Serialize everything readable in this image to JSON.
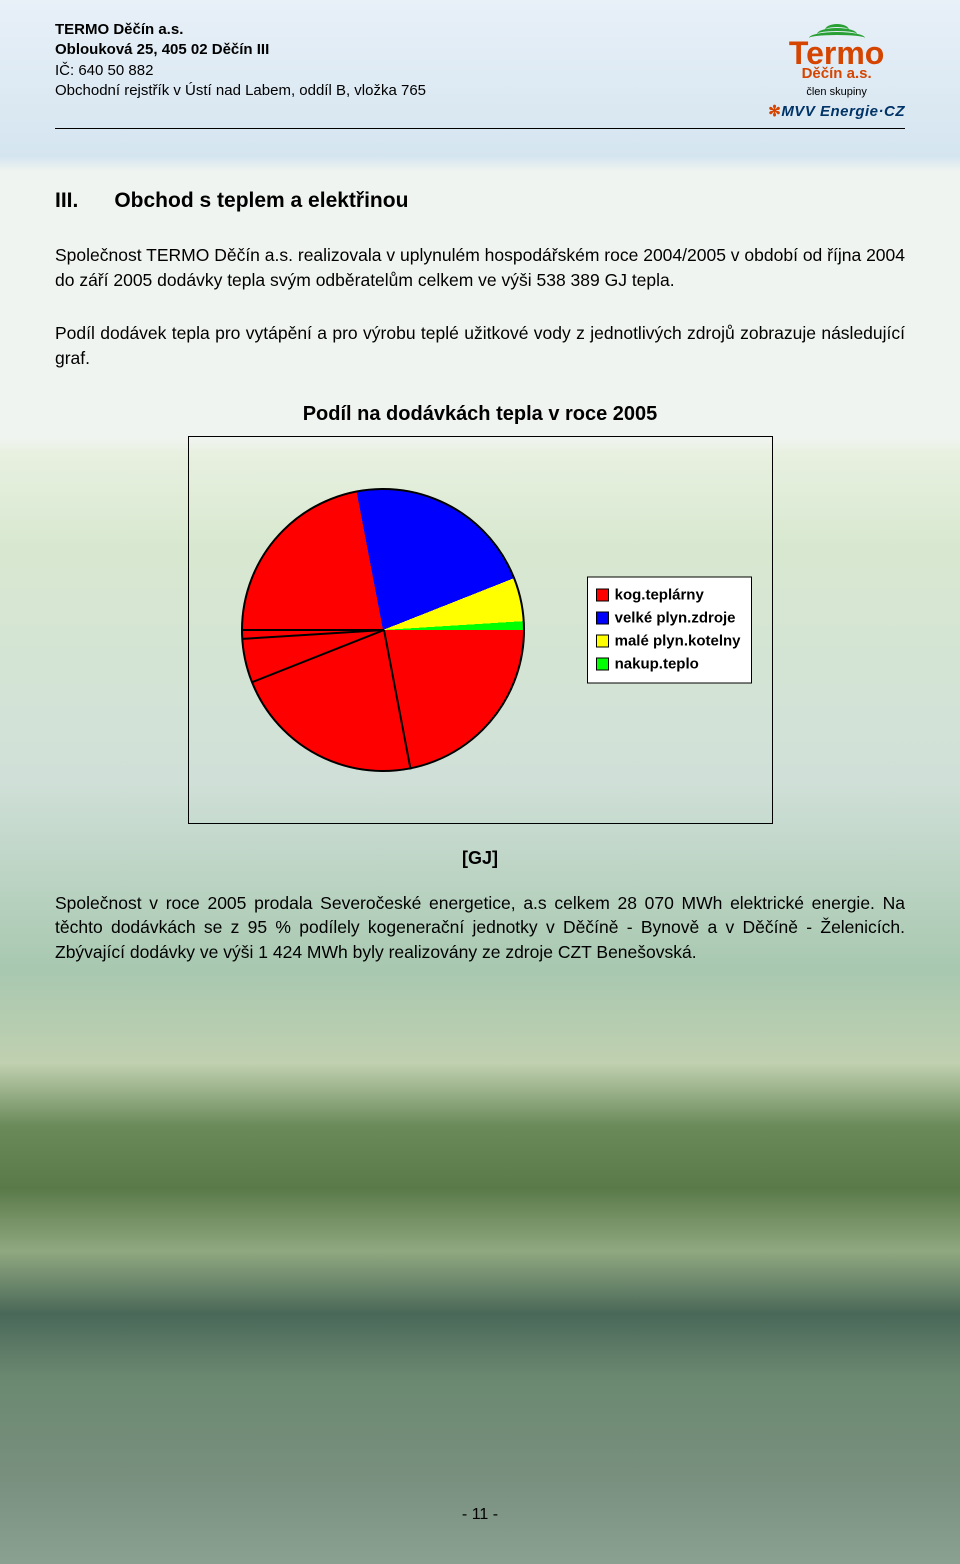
{
  "header": {
    "company": "TERMO Děčín a.s.",
    "address": "Oblouková 25, 405 02  Děčín III",
    "ico": "IČ: 640 50 882",
    "registry": "Obchodní rejstřík v Ústí nad Labem, oddíl B, vložka 765",
    "logo_name": "Termo",
    "logo_sub": "Děčín a.s.",
    "logo_member": "člen skupiny",
    "logo_mvv": "MVV Energie·CZ",
    "logo_color": "#d54500",
    "logo_arc_color": "#28a033",
    "mvv_color": "#003366"
  },
  "section": {
    "num": "III.",
    "title": "Obchod s teplem a elektřinou"
  },
  "para1": "Společnost TERMO Děčín a.s. realizovala v uplynulém hospodářském roce 2004/2005 v období od října 2004 do září 2005 dodávky tepla svým odběratelům celkem ve výši 538 389 GJ tepla.",
  "para2": "Podíl dodávek tepla pro vytápění a pro výrobu teplé užitkové vody z jednotlivých zdrojů zobrazuje následující graf.",
  "chart": {
    "title": "Podíl na dodávkách tepla v roce 2005",
    "type": "pie",
    "unit": "[GJ]",
    "background_color": "transparent",
    "border_color": "#000000",
    "slices": [
      {
        "label": "kog.teplárny",
        "value": 72,
        "color": "#ff0000"
      },
      {
        "label": "velké plyn.zdroje",
        "value": 22,
        "color": "#0000ff"
      },
      {
        "label": "malé plyn.kotelny",
        "value": 5,
        "color": "#ffff00"
      },
      {
        "label": "nakup.teplo",
        "value": 1,
        "color": "#00ff00"
      }
    ],
    "legend_bg": "#ffffff",
    "legend_fontsize": 15,
    "legend_fontweight": "bold",
    "start_angle_deg": -90,
    "slice_border_color": "#000000"
  },
  "para3": "Společnost v roce 2005 prodala Severočeské energetice, a.s celkem 28 070 MWh elektrické energie. Na těchto dodávkách se z 95 % podílely kogenerační jednotky v Děčíně - Bynově a v Děčíně - Želenicích. Zbývající dodávky ve výši 1 424 MWh byly realizovány ze zdroje CZT Benešovská.",
  "footer": "- 11 -"
}
